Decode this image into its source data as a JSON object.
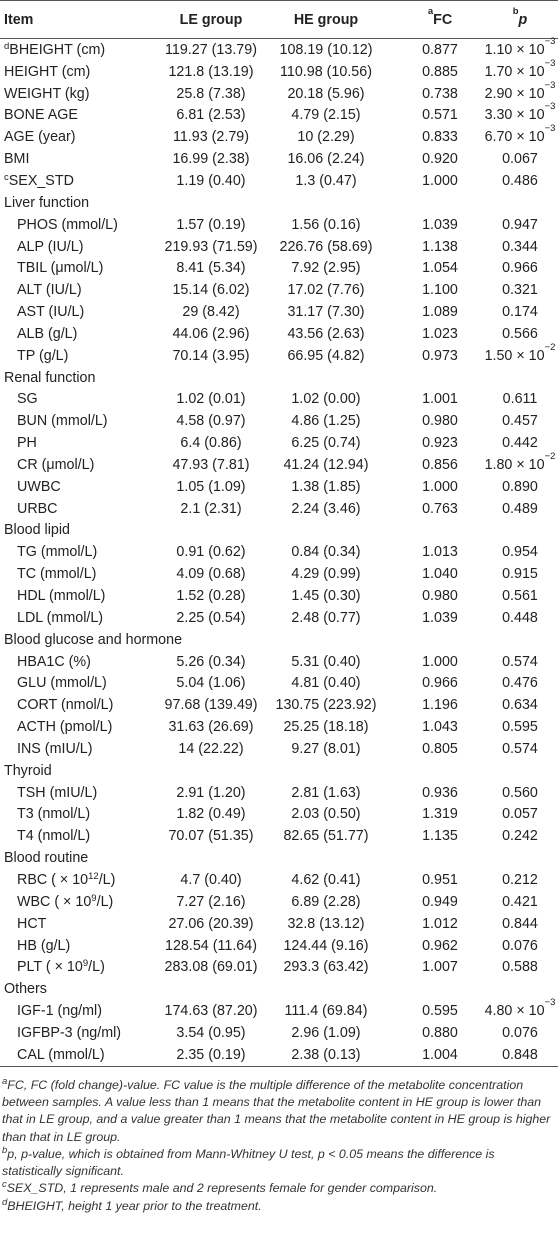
{
  "table": {
    "header": [
      "Item",
      "LE group",
      "HE group",
      [
        {
          "sup": "a"
        },
        "FC"
      ],
      [
        {
          "sup": "b"
        },
        {
          "italic": "p"
        }
      ]
    ],
    "rows": [
      [
        [
          {
            "sup": "d"
          },
          "BHEIGHT (cm)"
        ],
        "119.27 (13.79)",
        "108.19 (10.12)",
        "0.877",
        [
          "1.10 × 10",
          {
            "sup": "−3"
          }
        ]
      ],
      [
        "HEIGHT (cm)",
        "121.8 (13.19)",
        "110.98 (10.56)",
        "0.885",
        [
          "1.70 × 10",
          {
            "sup": "−3"
          }
        ]
      ],
      [
        "WEIGHT (kg)",
        "25.8 (7.38)",
        "20.18 (5.96)",
        "0.738",
        [
          "2.90 × 10",
          {
            "sup": "−3"
          }
        ]
      ],
      [
        "BONE AGE",
        "6.81 (2.53)",
        "4.79 (2.15)",
        "0.571",
        [
          "3.30 × 10",
          {
            "sup": "−3"
          }
        ]
      ],
      [
        "AGE (year)",
        "11.93 (2.79)",
        "10 (2.29)",
        "0.833",
        [
          "6.70 × 10",
          {
            "sup": "−3"
          }
        ]
      ],
      [
        "BMI",
        "16.99 (2.38)",
        "16.06 (2.24)",
        "0.920",
        "0.067"
      ],
      [
        [
          {
            "sup": "c"
          },
          "SEX_STD"
        ],
        "1.19 (0.40)",
        "1.3 (0.47)",
        "1.000",
        "0.486"
      ]
    ],
    "groups": [
      {
        "title": "Liver function",
        "rows": [
          [
            "PHOS (mmol/L)",
            "1.57 (0.19)",
            "1.56 (0.16)",
            "1.039",
            "0.947"
          ],
          [
            "ALP (IU/L)",
            "219.93 (71.59)",
            "226.76 (58.69)",
            "1.138",
            "0.344"
          ],
          [
            "TBIL (μmol/L)",
            "8.41 (5.34)",
            "7.92 (2.95)",
            "1.054",
            "0.966"
          ],
          [
            "ALT (IU/L)",
            "15.14 (6.02)",
            "17.02 (7.76)",
            "1.100",
            "0.321"
          ],
          [
            "AST (IU/L)",
            "29 (8.42)",
            "31.17 (7.30)",
            "1.089",
            "0.174"
          ],
          [
            "ALB (g/L)",
            "44.06 (2.96)",
            "43.56 (2.63)",
            "1.023",
            "0.566"
          ],
          [
            "TP (g/L)",
            "70.14 (3.95)",
            "66.95 (4.82)",
            "0.973",
            [
              "1.50 × 10",
              {
                "sup": "−2"
              }
            ]
          ]
        ]
      },
      {
        "title": "Renal function",
        "rows": [
          [
            "SG",
            "1.02 (0.01)",
            "1.02 (0.00)",
            "1.001",
            "0.611"
          ],
          [
            "BUN (mmol/L)",
            "4.58 (0.97)",
            "4.86 (1.25)",
            "0.980",
            "0.457"
          ],
          [
            "PH",
            "6.4 (0.86)",
            "6.25 (0.74)",
            "0.923",
            "0.442"
          ],
          [
            "CR (μmol/L)",
            "47.93 (7.81)",
            "41.24 (12.94)",
            "0.856",
            [
              "1.80 × 10",
              {
                "sup": "−2"
              }
            ]
          ],
          [
            "UWBC",
            "1.05 (1.09)",
            "1.38 (1.85)",
            "1.000",
            "0.890"
          ],
          [
            "URBC",
            "2.1 (2.31)",
            "2.24 (3.46)",
            "0.763",
            "0.489"
          ]
        ]
      },
      {
        "title": "Blood lipid",
        "rows": [
          [
            "TG (mmol/L)",
            "0.91 (0.62)",
            "0.84 (0.34)",
            "1.013",
            "0.954"
          ],
          [
            "TC (mmol/L)",
            "4.09 (0.68)",
            "4.29 (0.99)",
            "1.040",
            "0.915"
          ],
          [
            "HDL (mmol/L)",
            "1.52 (0.28)",
            "1.45 (0.30)",
            "0.980",
            "0.561"
          ],
          [
            "LDL (mmol/L)",
            "2.25 (0.54)",
            "2.48 (0.77)",
            "1.039",
            "0.448"
          ]
        ]
      },
      {
        "title": "Blood glucose and hormone",
        "rows": [
          [
            "HBA1C (%)",
            "5.26 (0.34)",
            "5.31 (0.40)",
            "1.000",
            "0.574"
          ],
          [
            "GLU (mmol/L)",
            "5.04 (1.06)",
            "4.81 (0.40)",
            "0.966",
            "0.476"
          ],
          [
            "CORT (nmol/L)",
            "97.68 (139.49)",
            "130.75 (223.92)",
            "1.196",
            "0.634"
          ],
          [
            "ACTH (pmol/L)",
            "31.63 (26.69)",
            "25.25 (18.18)",
            "1.043",
            "0.595"
          ],
          [
            "INS (mIU/L)",
            "14 (22.22)",
            "9.27 (8.01)",
            "0.805",
            "0.574"
          ]
        ]
      },
      {
        "title": "Thyroid",
        "rows": [
          [
            "TSH (mIU/L)",
            "2.91 (1.20)",
            "2.81 (1.63)",
            "0.936",
            "0.560"
          ],
          [
            "T3 (nmol/L)",
            "1.82 (0.49)",
            "2.03 (0.50)",
            "1.319",
            "0.057"
          ],
          [
            "T4 (nmol/L)",
            "70.07 (51.35)",
            "82.65 (51.77)",
            "1.135",
            "0.242"
          ]
        ]
      },
      {
        "title": "Blood routine",
        "rows": [
          [
            [
              "RBC ( × 10",
              {
                "sup": "12"
              },
              "/L)"
            ],
            "4.7 (0.40)",
            "4.62 (0.41)",
            "0.951",
            "0.212"
          ],
          [
            [
              "WBC ( × 10",
              {
                "sup": "9"
              },
              "/L)"
            ],
            "7.27 (2.16)",
            "6.89 (2.28)",
            "0.949",
            "0.421"
          ],
          [
            "HCT",
            "27.06 (20.39)",
            "32.8 (13.12)",
            "1.012",
            "0.844"
          ],
          [
            "HB (g/L)",
            "128.54 (11.64)",
            "124.44 (9.16)",
            "0.962",
            "0.076"
          ],
          [
            [
              "PLT ( × 10",
              {
                "sup": "9"
              },
              "/L)"
            ],
            "283.08 (69.01)",
            "293.3 (63.42)",
            "1.007",
            "0.588"
          ]
        ]
      },
      {
        "title": "Others",
        "rows": [
          [
            "IGF-1 (ng/ml)",
            "174.63 (87.20)",
            "111.4 (69.84)",
            "0.595",
            [
              "4.80 × 10",
              {
                "sup": "−3"
              }
            ]
          ],
          [
            "IGFBP-3 (ng/ml)",
            "3.54 (0.95)",
            "2.96 (1.09)",
            "0.880",
            "0.076"
          ],
          [
            "CAL (mmol/L)",
            "2.35 (0.19)",
            "2.38 (0.13)",
            "1.004",
            "0.848"
          ]
        ]
      }
    ],
    "footnotes": [
      [
        {
          "sup": "a"
        },
        "FC, FC (fold change)-value. FC value is the multiple difference of the metabolite concentration between samples. A value less than 1 means that the metabolite content in HE group is lower than that in LE group, and a value greater than 1 means that the metabolite content in HE group is higher than that in LE group."
      ],
      [
        {
          "sup": "b"
        },
        "p, p-value, which is obtained from Mann-Whitney U test, p < 0.05 means the difference is statistically significant."
      ],
      [
        {
          "sup": "c"
        },
        "SEX_STD, 1 represents male and 2 represents female for gender comparison."
      ],
      [
        {
          "sup": "d"
        },
        "BHEIGHT, height 1 year prior to the treatment."
      ]
    ]
  }
}
